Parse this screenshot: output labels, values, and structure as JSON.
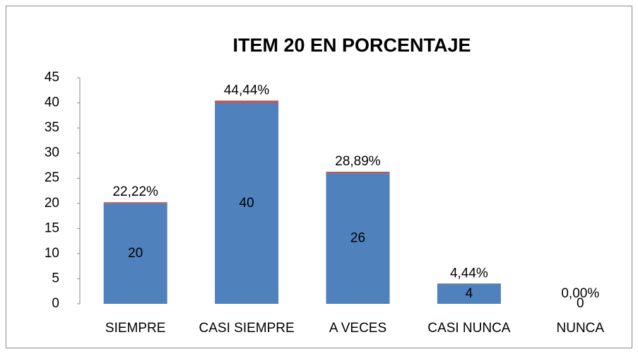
{
  "chart_data": {
    "type": "bar",
    "stacked": true,
    "title": "ITEM 20 EN PORCENTAJE",
    "categories": [
      "SIEMPRE",
      "CASI SIEMPRE",
      "A VECES",
      "CASI NUNCA",
      "NUNCA"
    ],
    "series": [
      {
        "color": "#4f81bd",
        "values": [
          20,
          40,
          26,
          4,
          0
        ]
      },
      {
        "color": "#c0504d",
        "values": [
          0.2222,
          0.4444,
          0.2889,
          0.0444,
          0
        ],
        "value_labels": [
          "22,22%",
          "44,44%",
          "28,89%",
          "4,44%",
          "0,00%"
        ]
      }
    ],
    "ylim": [
      0,
      45
    ],
    "yticks": [
      0,
      5,
      10,
      15,
      20,
      25,
      30,
      35,
      40,
      45
    ]
  }
}
